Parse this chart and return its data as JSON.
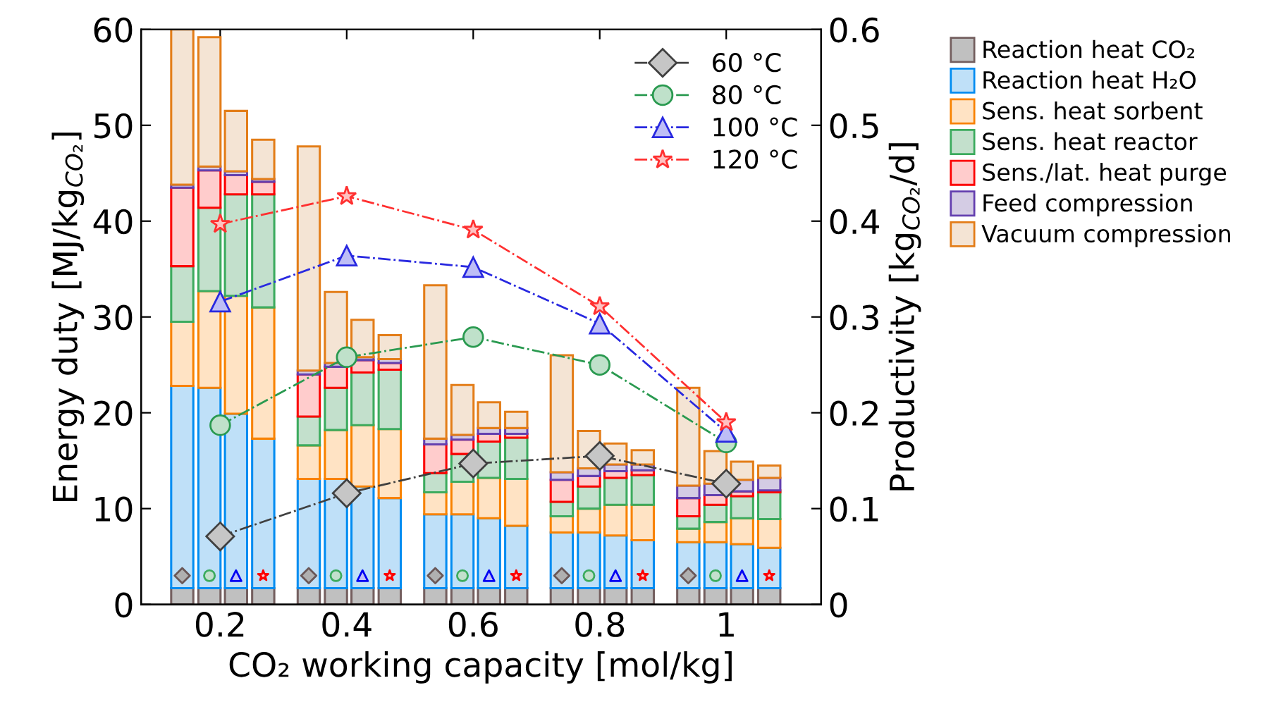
{
  "chart_data": {
    "type": "bar",
    "stacked": true,
    "xlabel": "CO₂ working capacity [mol/kg]",
    "ylabel": "Energy duty [MJ/kg$_{CO₂}$]",
    "y2label": "Productivity [kg$_{CO₂}$/d]",
    "xlim": [
      0.075,
      1.15
    ],
    "xticks": [
      {
        "value": 0.2,
        "label": "0.2"
      },
      {
        "value": 0.4,
        "label": "0.4"
      },
      {
        "value": 0.6,
        "label": "0.6"
      },
      {
        "value": 0.8,
        "label": "0.8"
      },
      {
        "value": 1,
        "label": "1"
      }
    ],
    "ylim": [
      0,
      60
    ],
    "yticks": [
      0,
      10,
      20,
      30,
      40,
      50,
      60
    ],
    "y2lim": [
      0,
      0.6
    ],
    "y2ticks": [
      0,
      0.1,
      0.2,
      0.3,
      0.4,
      0.5,
      0.6
    ],
    "grid": false,
    "legend": "right",
    "line_style": "dashdot",
    "series": [
      {
        "name": "Reaction heat CO₂",
        "color": "#c0c0c0",
        "x": [
          0.14,
          0.183,
          0.225,
          0.268,
          0.34,
          0.383,
          0.425,
          0.468,
          0.54,
          0.583,
          0.625,
          0.668,
          0.74,
          0.783,
          0.825,
          0.868,
          0.94,
          0.983,
          1.025,
          1.068
        ],
        "values": [
          1.7,
          1.7,
          1.7,
          1.7,
          1.7,
          1.7,
          1.7,
          1.7,
          1.7,
          1.7,
          1.7,
          1.7,
          1.7,
          1.7,
          1.7,
          1.7,
          1.7,
          1.7,
          1.7,
          1.7
        ]
      },
      {
        "name": "Reaction heat H₂O",
        "color": "#bfe0f8",
        "x": [
          0.14,
          0.183,
          0.225,
          0.268,
          0.34,
          0.383,
          0.425,
          0.468,
          0.54,
          0.583,
          0.625,
          0.668,
          0.74,
          0.783,
          0.825,
          0.868,
          0.94,
          0.983,
          1.025,
          1.068
        ],
        "values": [
          21.1,
          20.9,
          18.2,
          15.6,
          11.4,
          11.4,
          10.6,
          9.4,
          7.7,
          7.7,
          7.3,
          6.5,
          5.8,
          5.8,
          5.5,
          5.0,
          4.8,
          4.8,
          4.6,
          4.2
        ]
      },
      {
        "name": "Sens. heat sorbent",
        "color": "#ffe3c4",
        "x": [
          0.14,
          0.183,
          0.225,
          0.268,
          0.34,
          0.383,
          0.425,
          0.468,
          0.54,
          0.583,
          0.625,
          0.668,
          0.74,
          0.783,
          0.825,
          0.868,
          0.94,
          0.983,
          1.025,
          1.068
        ],
        "values": [
          6.7,
          10.1,
          12.3,
          13.7,
          3.5,
          5.1,
          6.4,
          7.2,
          2.3,
          3.4,
          4.2,
          4.9,
          1.7,
          2.5,
          3.2,
          3.7,
          1.4,
          2.1,
          2.7,
          3.0
        ]
      },
      {
        "name": "Sens. heat reactor",
        "color": "#c3e0cc",
        "x": [
          0.14,
          0.183,
          0.225,
          0.268,
          0.34,
          0.383,
          0.425,
          0.468,
          0.54,
          0.583,
          0.625,
          0.668,
          0.74,
          0.783,
          0.825,
          0.868,
          0.94,
          0.983,
          1.025,
          1.068
        ],
        "values": [
          5.8,
          8.7,
          10.6,
          11.8,
          3.0,
          4.4,
          5.5,
          6.2,
          2.0,
          2.9,
          3.8,
          4.3,
          1.5,
          2.3,
          2.8,
          3.1,
          1.3,
          1.8,
          2.3,
          2.8
        ]
      },
      {
        "name": "Sens./lat. heat purge",
        "color": "#ffcccc",
        "x": [
          0.14,
          0.183,
          0.225,
          0.268,
          0.34,
          0.383,
          0.425,
          0.468,
          0.54,
          0.583,
          0.625,
          0.668,
          0.74,
          0.783,
          0.825,
          0.868,
          0.94,
          0.983,
          1.025,
          1.068
        ],
        "values": [
          8.2,
          3.9,
          2.0,
          1.3,
          4.4,
          2.2,
          1.3,
          0.7,
          3.0,
          1.5,
          0.8,
          0.4,
          2.3,
          1.1,
          0.7,
          0.5,
          1.9,
          1.0,
          0.5,
          0.2
        ]
      },
      {
        "name": "Feed compression",
        "color": "#d4cce4",
        "x": [
          0.14,
          0.183,
          0.225,
          0.268,
          0.34,
          0.383,
          0.425,
          0.468,
          0.54,
          0.583,
          0.625,
          0.668,
          0.74,
          0.783,
          0.825,
          0.868,
          0.94,
          0.983,
          1.025,
          1.068
        ],
        "values": [
          0.3,
          0.4,
          0.4,
          0.3,
          0.4,
          0.4,
          0.3,
          0.4,
          0.6,
          0.5,
          0.6,
          0.6,
          0.8,
          0.8,
          0.7,
          0.6,
          1.3,
          1.2,
          1.2,
          1.3
        ]
      },
      {
        "name": "Vacuum compression",
        "color": "#f4e4d4",
        "x": [
          0.14,
          0.183,
          0.225,
          0.268,
          0.34,
          0.383,
          0.425,
          0.468,
          0.54,
          0.583,
          0.625,
          0.668,
          0.74,
          0.783,
          0.825,
          0.868,
          0.94,
          0.983,
          1.025,
          1.068
        ],
        "values": [
          16.2,
          13.5,
          6.3,
          4.1,
          23.4,
          7.4,
          3.9,
          2.5,
          16.0,
          5.2,
          2.7,
          1.7,
          12.2,
          3.9,
          2.2,
          1.5,
          10.2,
          3.4,
          1.9,
          1.3
        ]
      },
      {
        "type": "scatter",
        "color": "#b0b0b0",
        "marker": "diamond",
        "x": [
          0.14,
          0.34,
          0.54,
          0.74,
          0.94
        ],
        "values": [
          3,
          3,
          3,
          3,
          3
        ]
      },
      {
        "type": "scatter",
        "color": "#c3e0cc",
        "marker": "circle",
        "x": [
          0.183,
          0.383,
          0.583,
          0.783,
          0.983
        ],
        "values": [
          3,
          3,
          3,
          3,
          3
        ]
      },
      {
        "type": "scatter",
        "color": "#c0c0f8",
        "marker": "triangle",
        "x": [
          0.225,
          0.425,
          0.625,
          0.825,
          1.025
        ],
        "values": [
          3,
          3,
          3,
          3,
          3
        ]
      },
      {
        "type": "scatter",
        "color": "#ffcccc",
        "marker": "star",
        "x": [
          0.268,
          0.468,
          0.668,
          0.868,
          1.068
        ],
        "values": [
          3,
          3,
          3,
          3,
          3
        ]
      },
      {
        "type": "line",
        "axis": "y2",
        "name": "60 °C",
        "color": "#404040",
        "marker": "diamond",
        "x": [
          0.2,
          0.4,
          0.6,
          0.8,
          1
        ],
        "values": [
          0.071,
          0.116,
          0.147,
          0.155,
          0.126
        ]
      },
      {
        "type": "line",
        "axis": "y2",
        "name": "80 °C",
        "color": "#2a9a50",
        "marker": "circle",
        "x": [
          0.2,
          0.4,
          0.6,
          0.8,
          1
        ],
        "values": [
          0.187,
          0.258,
          0.279,
          0.25,
          0.169
        ]
      },
      {
        "type": "line",
        "axis": "y2",
        "name": "100 °C",
        "color": "#2828e0",
        "marker": "triangle",
        "x": [
          0.2,
          0.4,
          0.6,
          0.8,
          1
        ],
        "values": [
          0.316,
          0.364,
          0.352,
          0.293,
          0.18
        ]
      },
      {
        "type": "line",
        "axis": "y2",
        "name": "120 °C",
        "color": "#ff3030",
        "marker": "star",
        "x": [
          0.2,
          0.4,
          0.6,
          0.8,
          1
        ],
        "values": [
          0.397,
          0.426,
          0.391,
          0.311,
          0.19
        ]
      }
    ]
  }
}
